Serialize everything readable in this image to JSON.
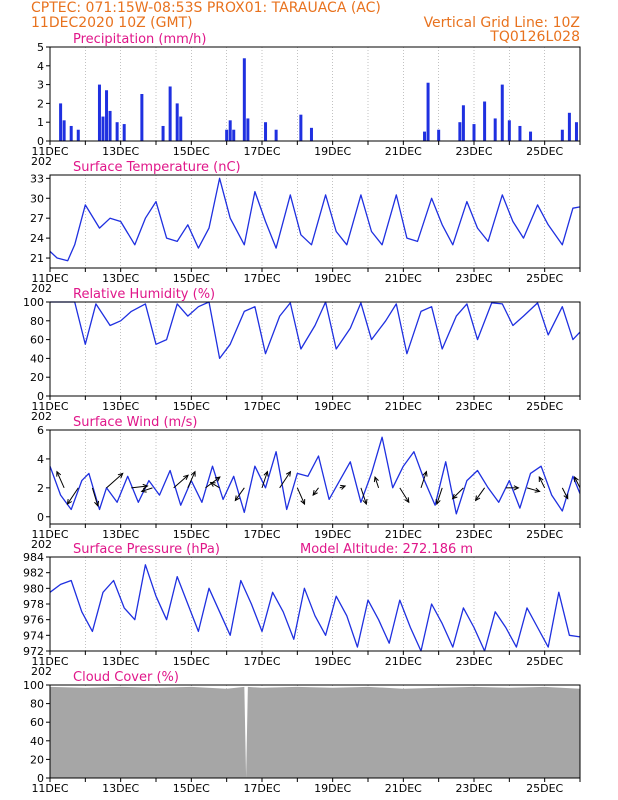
{
  "header": {
    "line1_left": "CPTEC:   071:15W-08:53S   PROX01: TARAUACA (AC)",
    "line2_left": "11DEC2020  10Z (GMT)",
    "line2_right": "Vertical Grid Line: 10Z",
    "line3_right": "TQ0126L028"
  },
  "colors": {
    "header": "#e8721e",
    "title": "#e0178a",
    "series": "#1f30e0",
    "cloud": "#a6a6a6",
    "grid": "#9a9a9a",
    "arrow": "#000000"
  },
  "x_axis": {
    "start_day": 11,
    "end_day": 26,
    "labels": [
      "11DEC",
      "13DEC",
      "15DEC",
      "17DEC",
      "19DEC",
      "21DEC",
      "23DEC",
      "25DEC"
    ],
    "label_days": [
      11,
      13,
      15,
      17,
      19,
      21,
      23,
      25
    ],
    "cut_year_label": "202"
  },
  "chart_data": [
    {
      "type": "bar",
      "title": "Precipitation  (mm/h)",
      "ylim": [
        0,
        5
      ],
      "yticks": [
        0,
        1,
        2,
        3,
        4,
        5
      ],
      "series": [
        {
          "days": [
            11.3,
            11.4,
            11.6,
            11.8,
            12.4,
            12.5,
            12.6,
            12.7,
            12.9,
            13.1,
            13.6,
            14.2,
            14.4,
            14.6,
            14.7,
            16.0,
            16.1,
            16.2,
            16.5,
            16.6,
            17.1,
            17.4,
            18.1,
            18.4,
            21.6,
            21.7,
            22.0,
            22.6,
            22.7,
            23.0,
            23.3,
            23.6,
            23.8,
            24.0,
            24.3,
            24.6,
            25.5,
            25.7,
            25.9
          ],
          "values": [
            2.0,
            1.1,
            0.8,
            0.6,
            3.0,
            1.3,
            2.7,
            1.6,
            1.0,
            0.9,
            2.5,
            0.8,
            2.9,
            2.0,
            1.3,
            0.6,
            1.1,
            0.6,
            4.4,
            1.2,
            1.0,
            0.6,
            1.4,
            0.7,
            0.5,
            3.1,
            0.6,
            1.0,
            1.9,
            0.9,
            2.1,
            1.2,
            3.0,
            1.1,
            0.8,
            0.5,
            0.6,
            1.5,
            1.0
          ]
        }
      ]
    },
    {
      "type": "line",
      "title": "Surface Temperature (nC)",
      "ylim": [
        19.5,
        33.5
      ],
      "yticks": [
        21,
        24,
        27,
        30,
        33
      ],
      "series": [
        {
          "days": [
            11.0,
            11.2,
            11.5,
            11.7,
            12.0,
            12.4,
            12.7,
            13.0,
            13.4,
            13.7,
            14.0,
            14.3,
            14.6,
            14.9,
            15.2,
            15.5,
            15.8,
            16.1,
            16.5,
            16.8,
            17.1,
            17.4,
            17.8,
            18.1,
            18.4,
            18.8,
            19.1,
            19.4,
            19.8,
            20.1,
            20.4,
            20.8,
            21.1,
            21.4,
            21.8,
            22.1,
            22.4,
            22.8,
            23.1,
            23.4,
            23.8,
            24.1,
            24.4,
            24.8,
            25.1,
            25.5,
            25.8,
            26.0
          ],
          "values": [
            22.0,
            21.0,
            20.6,
            23.0,
            29.0,
            25.5,
            27.0,
            26.5,
            23.0,
            27.0,
            29.5,
            24.0,
            23.5,
            26.0,
            22.5,
            25.5,
            33.0,
            27.0,
            23.0,
            31.0,
            26.5,
            22.5,
            30.5,
            24.5,
            23.0,
            30.5,
            25.0,
            23.0,
            30.5,
            25.0,
            23.0,
            30.5,
            24.0,
            23.5,
            30.0,
            26.0,
            23.0,
            29.5,
            25.5,
            23.5,
            30.5,
            26.5,
            24.0,
            29.0,
            26.0,
            23.0,
            28.5,
            28.7
          ]
        }
      ]
    },
    {
      "type": "line",
      "title": "Relative Humidity  (%)",
      "ylim": [
        0,
        100
      ],
      "yticks": [
        0,
        20,
        40,
        60,
        80,
        100
      ],
      "series": [
        {
          "days": [
            11.0,
            11.3,
            11.7,
            12.0,
            12.3,
            12.7,
            13.0,
            13.3,
            13.7,
            14.0,
            14.3,
            14.6,
            14.9,
            15.2,
            15.5,
            15.8,
            16.1,
            16.5,
            16.8,
            17.1,
            17.5,
            17.8,
            18.1,
            18.5,
            18.8,
            19.1,
            19.5,
            19.8,
            20.1,
            20.5,
            20.8,
            21.1,
            21.5,
            21.8,
            22.1,
            22.5,
            22.8,
            23.1,
            23.5,
            23.8,
            24.1,
            24.4,
            24.8,
            25.1,
            25.5,
            25.8,
            26.0
          ],
          "values": [
            100,
            100,
            100,
            55,
            98,
            75,
            80,
            90,
            98,
            55,
            60,
            98,
            85,
            95,
            100,
            40,
            55,
            90,
            95,
            45,
            85,
            99,
            50,
            75,
            100,
            50,
            72,
            99,
            60,
            80,
            98,
            45,
            90,
            95,
            50,
            85,
            98,
            60,
            99,
            98,
            75,
            85,
            99,
            65,
            95,
            60,
            68
          ]
        }
      ]
    },
    {
      "type": "line",
      "title": "Surface Wind  (m/s)",
      "ylim": [
        -0.5,
        6
      ],
      "yticks": [
        0,
        2,
        4,
        6
      ],
      "series": [
        {
          "days": [
            11.0,
            11.3,
            11.6,
            11.9,
            12.1,
            12.4,
            12.6,
            12.9,
            13.2,
            13.5,
            13.8,
            14.1,
            14.4,
            14.7,
            15.0,
            15.3,
            15.6,
            15.9,
            16.2,
            16.5,
            16.8,
            17.1,
            17.4,
            17.7,
            18.0,
            18.3,
            18.6,
            18.9,
            19.2,
            19.5,
            19.8,
            20.1,
            20.4,
            20.7,
            21.0,
            21.3,
            21.6,
            21.9,
            22.2,
            22.5,
            22.8,
            23.1,
            23.4,
            23.7,
            24.0,
            24.3,
            24.6,
            24.9,
            25.2,
            25.5,
            25.8,
            26.0
          ],
          "values": [
            3.5,
            1.5,
            0.5,
            2.5,
            3.0,
            0.5,
            2.0,
            1.0,
            2.8,
            1.0,
            2.5,
            1.5,
            3.2,
            0.8,
            2.5,
            1.0,
            3.5,
            1.2,
            2.8,
            0.3,
            3.5,
            2.0,
            4.5,
            0.5,
            3.0,
            2.8,
            4.2,
            1.2,
            2.5,
            3.8,
            1.0,
            3.0,
            5.5,
            2.0,
            3.5,
            4.5,
            2.5,
            0.8,
            3.8,
            0.2,
            2.5,
            3.2,
            2.0,
            1.0,
            2.5,
            0.6,
            3.0,
            3.5,
            1.5,
            0.4,
            2.8,
            1.6
          ]
        }
      ],
      "vectors": {
        "days": [
          11.4,
          11.8,
          12.2,
          12.6,
          13.3,
          13.9,
          14.5,
          14.9,
          15.4,
          15.8,
          16.5,
          17.0,
          17.5,
          18.0,
          18.6,
          19.2,
          19.8,
          20.3,
          20.9,
          21.5,
          22.1,
          22.7,
          23.3,
          23.9,
          24.5,
          25.0,
          25.5,
          26.0
        ],
        "u": [
          -0.4,
          -0.6,
          0.3,
          0.9,
          0.9,
          -0.6,
          0.8,
          0.4,
          0.8,
          -0.5,
          -0.5,
          0.3,
          0.6,
          0.4,
          -0.3,
          0.3,
          0.3,
          -0.2,
          0.5,
          0.3,
          -0.3,
          -0.6,
          -0.5,
          0.7,
          0.7,
          -0.3,
          0.3,
          -0.3
        ],
        "v": [
          0.9,
          -0.9,
          -1.0,
          0.8,
          0.1,
          -0.2,
          0.7,
          0.9,
          0.6,
          0.3,
          -0.7,
          0.9,
          0.9,
          -0.9,
          -0.4,
          0.1,
          -0.9,
          0.6,
          -0.8,
          0.9,
          -0.9,
          -0.6,
          -0.7,
          0.0,
          -0.2,
          0.6,
          -0.6,
          0.6
        ]
      }
    },
    {
      "type": "line",
      "title": "Surface Pressure (hPa)",
      "annotation": "Model Altitude: 272.186  m",
      "ylim": [
        972,
        984
      ],
      "yticks": [
        972,
        974,
        976,
        978,
        980,
        982,
        984
      ],
      "series": [
        {
          "days": [
            11.0,
            11.3,
            11.6,
            11.9,
            12.2,
            12.5,
            12.8,
            13.1,
            13.4,
            13.7,
            14.0,
            14.3,
            14.6,
            14.9,
            15.2,
            15.5,
            15.8,
            16.1,
            16.4,
            16.7,
            17.0,
            17.3,
            17.6,
            17.9,
            18.2,
            18.5,
            18.8,
            19.1,
            19.4,
            19.7,
            20.0,
            20.3,
            20.6,
            20.9,
            21.2,
            21.5,
            21.8,
            22.1,
            22.4,
            22.7,
            23.0,
            23.3,
            23.6,
            23.9,
            24.2,
            24.5,
            24.8,
            25.1,
            25.4,
            25.7,
            26.0
          ],
          "values": [
            979.5,
            980.5,
            981.0,
            977.0,
            974.5,
            979.5,
            981.0,
            977.5,
            976.0,
            983.0,
            979.0,
            976.0,
            981.5,
            978.0,
            974.5,
            980.0,
            977.0,
            974.0,
            981.0,
            978.0,
            974.5,
            979.5,
            977.0,
            973.5,
            980.0,
            976.5,
            974.0,
            979.0,
            976.5,
            972.5,
            978.5,
            976.0,
            973.0,
            978.5,
            975.0,
            972.0,
            978.0,
            975.5,
            972.5,
            977.5,
            975.0,
            972.0,
            977.0,
            975.0,
            972.5,
            977.5,
            975.0,
            972.5,
            979.5,
            974.0,
            973.8
          ]
        }
      ]
    },
    {
      "type": "area",
      "title": "Cloud Cover  (%)",
      "ylim": [
        0,
        100
      ],
      "yticks": [
        0,
        20,
        40,
        60,
        80,
        100
      ],
      "series": [
        {
          "days": [
            11.0,
            12.0,
            13.0,
            14.0,
            15.0,
            16.0,
            16.5,
            16.55,
            16.6,
            17.0,
            18.0,
            19.0,
            20.0,
            21.0,
            22.0,
            23.0,
            24.0,
            25.0,
            26.0
          ],
          "values": [
            98,
            97,
            98,
            97,
            98,
            96,
            98,
            0,
            98,
            97,
            98,
            97,
            98,
            96,
            97,
            98,
            97,
            98,
            96
          ]
        }
      ]
    }
  ]
}
